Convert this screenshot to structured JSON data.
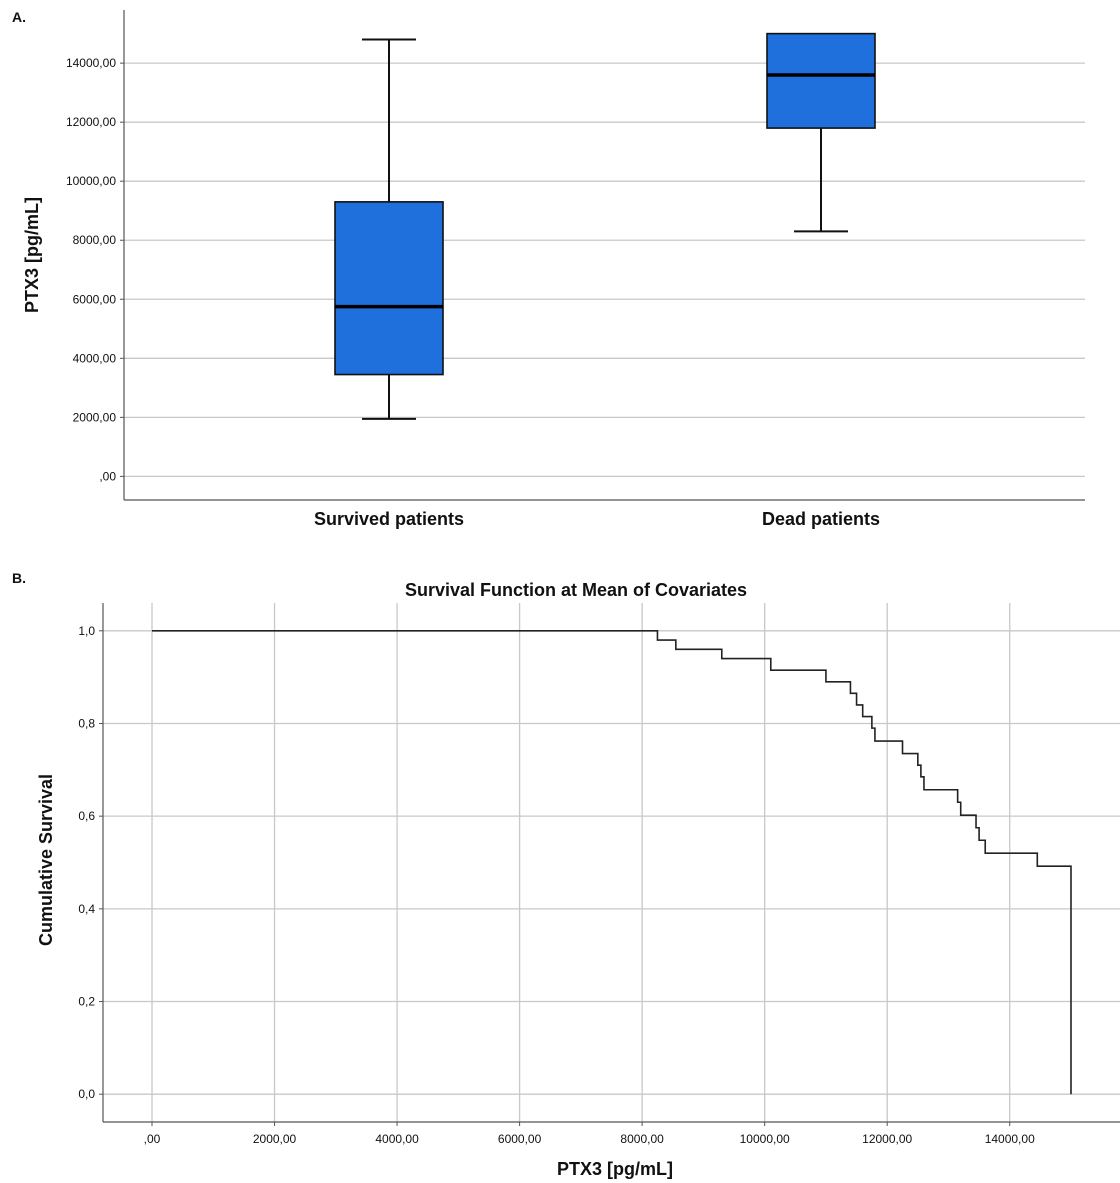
{
  "chart_data": [
    {
      "panel_label": "A.",
      "type": "box",
      "ylabel": "PTX3  [pg/mL]",
      "ylim": [
        -800,
        15800
      ],
      "yticks": [
        0,
        2000,
        4000,
        6000,
        8000,
        10000,
        12000,
        14000
      ],
      "ytick_labels": [
        ",00",
        "2000,00",
        "4000,00",
        "6000,00",
        "8000,00",
        "10000,00",
        "12000,00",
        "14000,00"
      ],
      "grid": true,
      "box_color": "#1f6fdd",
      "categories": [
        "Survived patients",
        "Dead patients"
      ],
      "boxes": [
        {
          "whisker_low": 1950,
          "q1": 3450,
          "median": 5750,
          "q3": 9300,
          "whisker_high": 14800
        },
        {
          "whisker_low": 8300,
          "q1": 11800,
          "median": 13600,
          "q3": 15000,
          "whisker_high": 15000
        }
      ]
    },
    {
      "panel_label": "B.",
      "type": "line",
      "subtype": "step",
      "title": "Survival Function at Mean of Covariates",
      "xlabel": "PTX3  [pg/mL]",
      "ylabel": "Cumulative Survival",
      "xlim": [
        -800,
        15800
      ],
      "ylim": [
        -0.06,
        1.06
      ],
      "xticks": [
        0,
        2000,
        4000,
        6000,
        8000,
        10000,
        12000,
        14000
      ],
      "xtick_labels": [
        ",00",
        "2000,00",
        "4000,00",
        "6000,00",
        "8000,00",
        "10000,00",
        "12000,00",
        "14000,00"
      ],
      "yticks": [
        0,
        0.2,
        0.4,
        0.6,
        0.8,
        1.0
      ],
      "ytick_labels": [
        "0,0",
        "0,2",
        "0,4",
        "0,6",
        "0,8",
        "1,0"
      ],
      "grid": true,
      "line_color": "#222222",
      "series": [
        {
          "x": [
            0,
            8250,
            8550,
            9300,
            10100,
            11000,
            11400,
            11500,
            11600,
            11750,
            11800,
            12250,
            12500,
            12550,
            12600,
            13150,
            13200,
            13450,
            13500,
            13600,
            14450,
            15000,
            15000
          ],
          "y": [
            1.0,
            0.98,
            0.96,
            0.94,
            0.915,
            0.89,
            0.865,
            0.84,
            0.815,
            0.79,
            0.762,
            0.735,
            0.71,
            0.685,
            0.657,
            0.63,
            0.602,
            0.575,
            0.548,
            0.52,
            0.492,
            0.492,
            0.0
          ]
        }
      ]
    }
  ]
}
